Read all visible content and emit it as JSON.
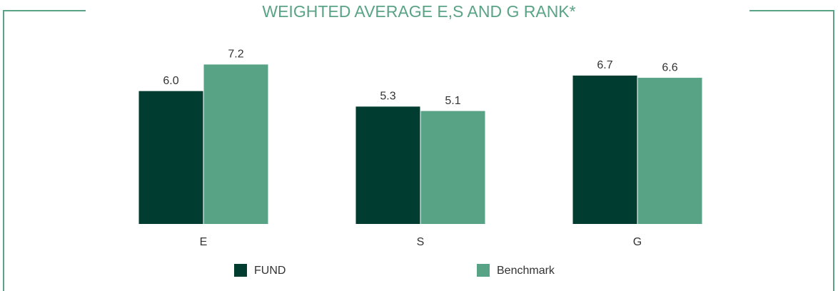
{
  "chart_data": {
    "type": "bar",
    "title": "WEIGHTED AVERAGE E,S AND G RANK*",
    "categories": [
      "E",
      "S",
      "G"
    ],
    "series": [
      {
        "name": "FUND",
        "color": "#003c30",
        "values": [
          6.0,
          5.3,
          6.7
        ],
        "value_labels": [
          "6.0",
          "5.3",
          "6.7"
        ]
      },
      {
        "name": "Benchmark",
        "color": "#58a385",
        "values": [
          7.2,
          5.1,
          6.6
        ],
        "value_labels": [
          "7.2",
          "5.1",
          "6.6"
        ]
      }
    ],
    "ylim": [
      0,
      9.5
    ],
    "legend": "bottom"
  }
}
